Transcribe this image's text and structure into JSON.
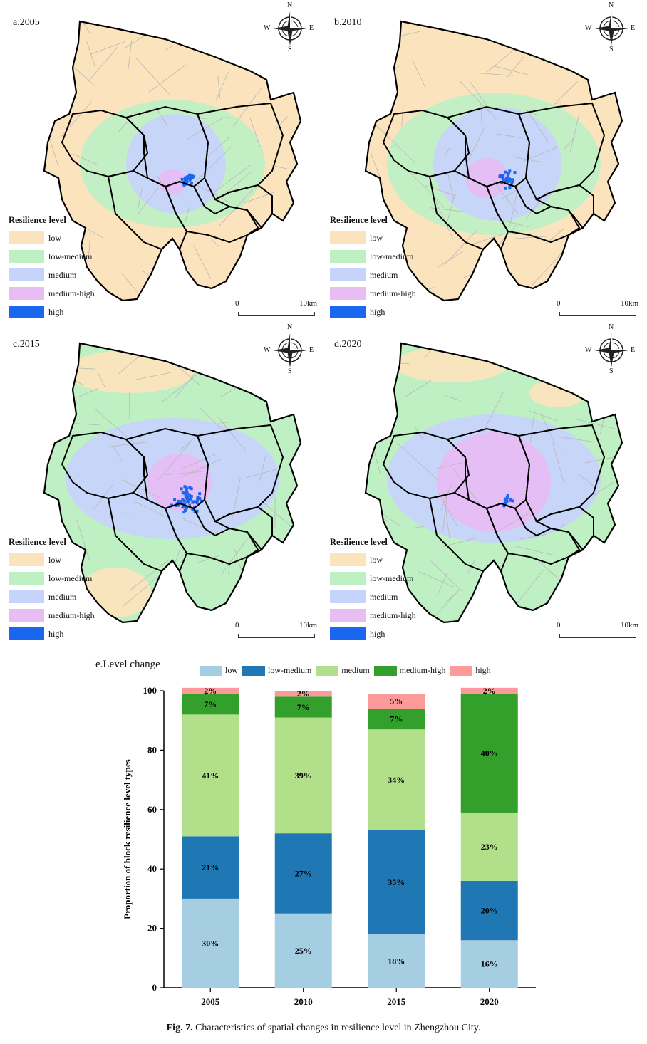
{
  "colors": {
    "low": "#fbe4bd",
    "low_medium": "#bff0c4",
    "medium": "#c6d3fb",
    "medium_high": "#e7bdf4",
    "high": "#1a66ee",
    "road": "#b7b7b7",
    "boundary": "#000000"
  },
  "compass": {
    "n": "N",
    "s": "S",
    "e": "E",
    "w": "W",
    "icon": "compass-rose-icon"
  },
  "legend": {
    "title": "Resilience level",
    "items": [
      "low",
      "low-medium",
      "medium",
      "medium-high",
      "high"
    ]
  },
  "scale": {
    "zero": "0",
    "label": "10km"
  },
  "panels": [
    {
      "title": "a.2005",
      "dominant": "low"
    },
    {
      "title": "b.2010",
      "dominant": "low"
    },
    {
      "title": "c.2015",
      "dominant": "low-medium"
    },
    {
      "title": "d.2020",
      "dominant": "low-medium"
    }
  ],
  "chart_data": {
    "type": "bar",
    "stacked": true,
    "title": "e.Level change",
    "ylabel": "Proportion of block resilience level types",
    "xlabel": "",
    "ylim": [
      0,
      100
    ],
    "yticks": [
      0,
      20,
      40,
      60,
      80,
      100
    ],
    "categories": [
      "2005",
      "2010",
      "2015",
      "2020"
    ],
    "series": [
      {
        "name": "low",
        "color": "#a6cee3",
        "values": [
          30,
          25,
          18,
          16
        ],
        "labels": [
          "30%",
          "25%",
          "18%",
          "16%"
        ]
      },
      {
        "name": "low-medium",
        "color": "#1f78b4",
        "values": [
          21,
          27,
          35,
          20
        ],
        "labels": [
          "21%",
          "27%",
          "35%",
          "20%"
        ]
      },
      {
        "name": "medium",
        "color": "#b2df8a",
        "values": [
          41,
          39,
          34,
          23
        ],
        "labels": [
          "41%",
          "39%",
          "34%",
          "23%"
        ]
      },
      {
        "name": "medium-high",
        "color": "#33a02c",
        "values": [
          7,
          7,
          7,
          40
        ],
        "labels": [
          "7%",
          "7%",
          "7%",
          "40%"
        ]
      },
      {
        "name": "high",
        "color": "#fb9a99",
        "values": [
          2,
          2,
          5,
          2
        ],
        "labels": [
          "2%",
          "2%",
          "5%",
          "2%"
        ]
      }
    ],
    "legend_position": "top"
  },
  "caption": {
    "label": "Fig. 7.",
    "text": "Characteristics of spatial changes in resilience level in Zhengzhou City."
  }
}
